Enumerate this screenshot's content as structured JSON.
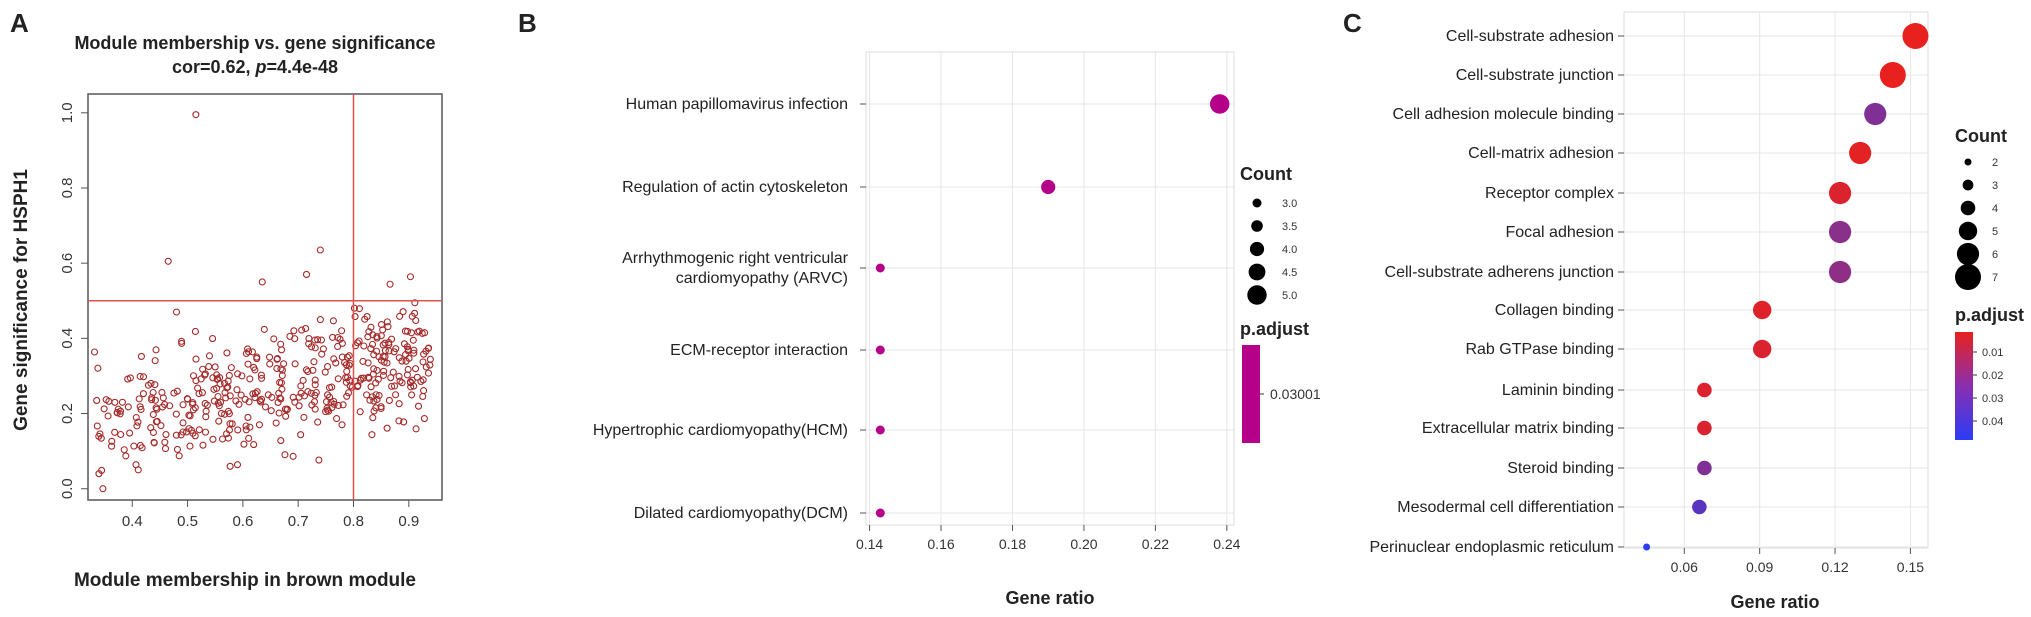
{
  "chart_data": [
    {
      "panel": "A",
      "type": "scatter",
      "title": "Module membership vs. gene significance",
      "subtitle_prefix": "cor=0.62, ",
      "subtitle_p_label": "p",
      "subtitle_suffix": "=4.4e-48",
      "xlabel": "Module membership in brown module",
      "ylabel": "Gene significance for HSPH1",
      "xlim": [
        0.32,
        0.96
      ],
      "ylim": [
        -0.03,
        1.05
      ],
      "xticks": [
        0.4,
        0.5,
        0.6,
        0.7,
        0.8,
        0.9
      ],
      "yticks": [
        0.0,
        0.2,
        0.4,
        0.6,
        0.8,
        1.0
      ],
      "reference_lines": {
        "x": 0.8,
        "y": 0.5
      },
      "grid": false,
      "marker_color": "#a52a2a",
      "line_color": "#e0524d",
      "n_points": 450
    },
    {
      "panel": "B",
      "type": "scatter",
      "xlabel": "Gene ratio",
      "xlim": [
        0.139,
        0.242
      ],
      "xticks": [
        0.14,
        0.16,
        0.18,
        0.2,
        0.22,
        0.24
      ],
      "xtick_labels": [
        "0.14",
        "0.16",
        "0.18",
        "0.20",
        "0.22",
        "0.24"
      ],
      "categories": [
        "Human papillomavirus infection",
        "Regulation of actin cytoskeleton",
        "Arrhythmogenic right ventricular cardiomyopathy (ARVC)",
        "ECM-receptor interaction",
        "Hypertrophic cardiomyopathy(HCM)",
        "Dilated cardiomyopathy(DCM)"
      ],
      "category_lines": [
        [
          "Human papillomavirus infection"
        ],
        [
          "Regulation of actin cytoskeleton"
        ],
        [
          "Arrhythmogenic right ventricular",
          "cardiomyopathy (ARVC)"
        ],
        [
          "ECM-receptor interaction"
        ],
        [
          "Hypertrophic cardiomyopathy(HCM)"
        ],
        [
          "Dilated cardiomyopathy(DCM)"
        ]
      ],
      "gene_ratio": [
        0.238,
        0.19,
        0.143,
        0.143,
        0.143,
        0.143
      ],
      "count": [
        5,
        4,
        3,
        3,
        3,
        3
      ],
      "p_adjust": [
        0.03001,
        0.03001,
        0.03001,
        0.03001,
        0.03001,
        0.03001
      ],
      "point_color": "#b5008a",
      "legend_count_title": "Count",
      "legend_count_values": [
        "3.0",
        "3.5",
        "4.0",
        "4.5",
        "5.0"
      ],
      "legend_padj_title": "p.adjust",
      "legend_padj_value": "0.03001",
      "grid": true
    },
    {
      "panel": "C",
      "type": "scatter",
      "xlabel": "Gene ratio",
      "xlim": [
        0.036,
        0.157
      ],
      "xticks": [
        0.06,
        0.09,
        0.12,
        0.15
      ],
      "xtick_labels": [
        "0.06",
        "0.09",
        "0.12",
        "0.15"
      ],
      "categories": [
        "Cell-substrate adhesion",
        "Cell-substrate junction",
        "Cell adhesion molecule binding",
        "Cell-matrix adhesion",
        "Receptor complex",
        "Focal adhesion",
        "Cell-substrate adherens junction",
        "Collagen binding",
        "Rab GTPase binding",
        "Laminin binding",
        "Extracellular matrix binding",
        "Steroid binding",
        "Mesodermal cell differentiation",
        "Perinuclear endoplasmic reticulum"
      ],
      "gene_ratio": [
        0.152,
        0.143,
        0.136,
        0.13,
        0.122,
        0.122,
        0.122,
        0.091,
        0.091,
        0.068,
        0.068,
        0.068,
        0.066,
        0.045
      ],
      "count": [
        7,
        7,
        6,
        6,
        6,
        6,
        6,
        5,
        5,
        4,
        4,
        4,
        4,
        2
      ],
      "p_adjust": [
        0.005,
        0.005,
        0.027,
        0.006,
        0.008,
        0.025,
        0.024,
        0.007,
        0.008,
        0.008,
        0.008,
        0.027,
        0.035,
        0.045
      ],
      "legend_count_title": "Count",
      "legend_count_values": [
        "2",
        "3",
        "4",
        "5",
        "6",
        "7"
      ],
      "legend_padj_title": "p.adjust",
      "legend_padj_ticks": [
        "0.01",
        "0.02",
        "0.03",
        "0.04"
      ],
      "color_low": "#e8211f",
      "color_high": "#2b3cf5",
      "grid": true
    }
  ]
}
